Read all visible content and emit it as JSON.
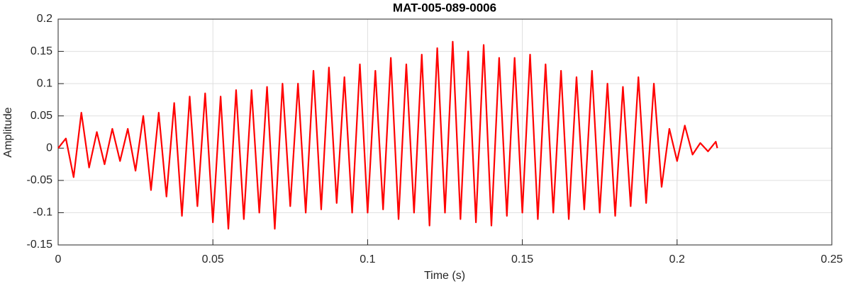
{
  "chart_data": {
    "type": "line",
    "title": "MAT-005-089-0006",
    "xlabel": "Time (s)",
    "ylabel": "Amplitude",
    "xlim": [
      0,
      0.25
    ],
    "xticks": [
      0,
      0.05,
      0.1,
      0.15,
      0.2,
      0.25
    ],
    "ylim": [
      -0.15,
      0.2
    ],
    "yticks": [
      -0.15,
      -0.1,
      -0.05,
      0,
      0.05,
      0.1,
      0.15,
      0.2
    ],
    "grid": true,
    "x": [
      0,
      0.0025,
      0.005,
      0.0075,
      0.01,
      0.0125,
      0.015,
      0.0175,
      0.02,
      0.0225,
      0.025,
      0.0275,
      0.03,
      0.0325,
      0.035,
      0.0375,
      0.04,
      0.0425,
      0.045,
      0.0475,
      0.05,
      0.0525,
      0.055,
      0.0575,
      0.06,
      0.0625,
      0.065,
      0.0675,
      0.07,
      0.0725,
      0.075,
      0.0775,
      0.08,
      0.0825,
      0.085,
      0.0875,
      0.09,
      0.0925,
      0.095,
      0.0975,
      0.1,
      0.1025,
      0.105,
      0.1075,
      0.11,
      0.1125,
      0.115,
      0.1175,
      0.12,
      0.1225,
      0.125,
      0.1275,
      0.13,
      0.1325,
      0.135,
      0.1375,
      0.14,
      0.1425,
      0.145,
      0.1475,
      0.15,
      0.1525,
      0.155,
      0.1575,
      0.16,
      0.1625,
      0.165,
      0.1675,
      0.17,
      0.1725,
      0.175,
      0.1775,
      0.18,
      0.1825,
      0.185,
      0.1875,
      0.19,
      0.1925,
      0.195,
      0.1975,
      0.2,
      0.2025,
      0.205,
      0.2075,
      0.21,
      0.2125,
      0.213
    ],
    "series": [
      {
        "name": "signal",
        "color": "#ff0000",
        "values": [
          0,
          0.015,
          -0.045,
          0.055,
          -0.03,
          0.025,
          -0.025,
          0.03,
          -0.02,
          0.03,
          -0.035,
          0.05,
          -0.065,
          0.055,
          -0.075,
          0.07,
          -0.105,
          0.08,
          -0.09,
          0.085,
          -0.115,
          0.08,
          -0.125,
          0.09,
          -0.11,
          0.09,
          -0.1,
          0.095,
          -0.125,
          0.1,
          -0.09,
          0.1,
          -0.1,
          0.12,
          -0.095,
          0.125,
          -0.085,
          0.11,
          -0.1,
          0.13,
          -0.1,
          0.12,
          -0.095,
          0.14,
          -0.11,
          0.13,
          -0.1,
          0.145,
          -0.12,
          0.155,
          -0.1,
          0.165,
          -0.11,
          0.15,
          -0.115,
          0.16,
          -0.12,
          0.14,
          -0.105,
          0.14,
          -0.1,
          0.145,
          -0.11,
          0.13,
          -0.1,
          0.12,
          -0.11,
          0.11,
          -0.095,
          0.12,
          -0.1,
          0.1,
          -0.105,
          0.095,
          -0.09,
          0.11,
          -0.085,
          0.1,
          -0.06,
          0.03,
          -0.02,
          0.035,
          -0.01,
          0.008,
          -0.005,
          0.01,
          0
        ]
      }
    ]
  }
}
